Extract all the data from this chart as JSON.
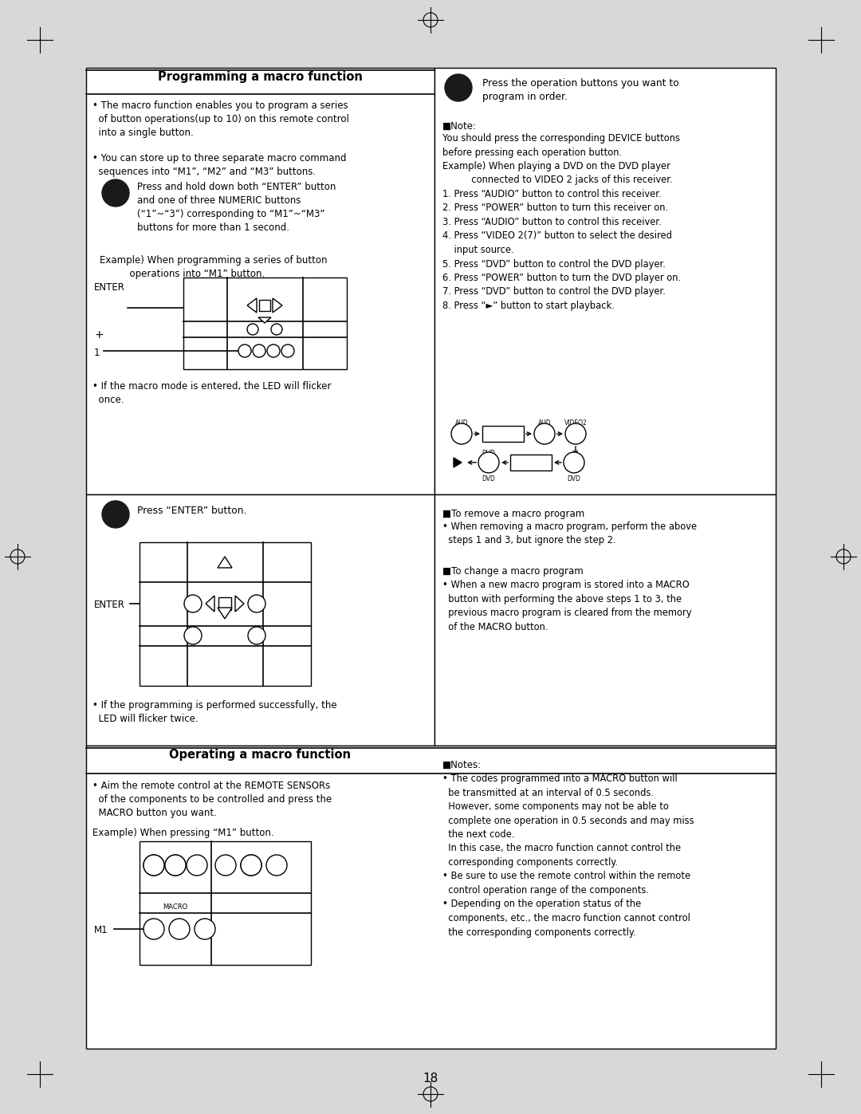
{
  "page_bg": "#d8d8d8",
  "title1": "Programming a macro function",
  "title2": "Operating a macro function",
  "page_number": "18",
  "bullet1": "• The macro function enables you to program a series\n  of button operations(up to 10) on this remote control\n  into a single button.",
  "bullet2": "• You can store up to three separate macro command\n  sequences into “M1”, “M2” and “M3” buttons.",
  "step1_text": "Press and hold down both “ENTER” button\nand one of three NUMERIC buttons\n(“1”~“3”) corresponding to “M1”~“M3”\nbuttons for more than 1 second.",
  "step1_example": "Example) When programming a series of button\n          operations into “M1” button.",
  "step1_led": "• If the macro mode is entered, the LED will flicker\n  once.",
  "step2_text": "Press the operation buttons you want to\nprogram in order.",
  "note_label": "■Note:",
  "note_body": "You should press the corresponding DEVICE buttons\nbefore pressing each operation button.\nExample) When playing a DVD on the DVD player\n          connected to VIDEO 2 jacks of this receiver.\n1. Press “AUDIO” button to control this receiver.\n2. Press “POWER” button to turn this receiver on.\n3. Press “AUDIO” button to control this receiver.\n4. Press “VIDEO 2(7)” button to select the desired\n    input source.\n5. Press “DVD” button to control the DVD player.\n6. Press “POWER” button to turn the DVD player on.\n7. Press “DVD” button to control the DVD player.\n8. Press “►” button to start playback.",
  "step3_text": "Press “ENTER” button.",
  "step3_led": "• If the programming is performed successfully, the\n  LED will flicker twice.",
  "remove_label": "■To remove a macro program",
  "remove_body": "• When removing a macro program, perform the above\n  steps 1 and 3, but ignore the step 2.",
  "change_label": "■To change a macro program",
  "change_body": "• When a new macro program is stored into a MACRO\n  button with performing the above steps 1 to 3, the\n  previous macro program is cleared from the memory\n  of the MACRO button.",
  "op_bullet1": "• Aim the remote control at the REMOTE SENSORs\n  of the components to be controlled and press the\n  MACRO button you want.",
  "op_example": "Example) When pressing “M1” button.",
  "notes_label": "■Notes:",
  "notes_body": "• The codes programmed into a MACRO button will\n  be transmitted at an interval of 0.5 seconds.\n  However, some components may not be able to\n  complete one operation in 0.5 seconds and may miss\n  the next code.\n  In this case, the macro function cannot control the\n  corresponding components correctly.\n• Be sure to use the remote control within the remote\n  control operation range of the components.\n• Depending on the operation status of the\n  components, etc., the macro function cannot control\n  the corresponding components correctly."
}
